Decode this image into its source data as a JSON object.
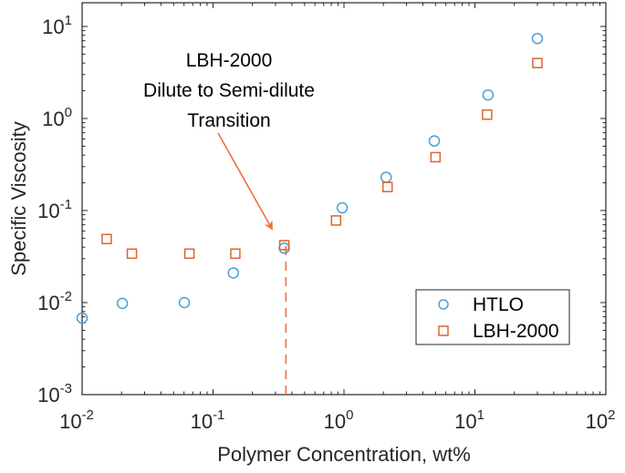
{
  "chart_data": {
    "type": "scatter",
    "title": "",
    "xlabel": "Polymer Concentration, wt%",
    "ylabel": "Specific Viscosity",
    "xscale": "log",
    "yscale": "log",
    "xlim": [
      0.01,
      100
    ],
    "ylim": [
      0.001,
      18
    ],
    "x_ticks": [
      {
        "base": "10",
        "exp": "-2",
        "value": 0.01
      },
      {
        "base": "10",
        "exp": "-1",
        "value": 0.1
      },
      {
        "base": "10",
        "exp": "0",
        "value": 1
      },
      {
        "base": "10",
        "exp": "1",
        "value": 10
      },
      {
        "base": "10",
        "exp": "2",
        "value": 100
      }
    ],
    "y_ticks": [
      {
        "base": "10",
        "exp": "-3",
        "value": 0.001
      },
      {
        "base": "10",
        "exp": "-2",
        "value": 0.01
      },
      {
        "base": "10",
        "exp": "-1",
        "value": 0.1
      },
      {
        "base": "10",
        "exp": "0",
        "value": 1
      },
      {
        "base": "10",
        "exp": "1",
        "value": 10
      }
    ],
    "grid": false,
    "legend_position": "lower right",
    "series": [
      {
        "name": "HTLO",
        "marker": "circle",
        "color": "#4a9fd8",
        "x": [
          0.01,
          0.0203,
          0.0604,
          0.143,
          0.35,
          0.97,
          2.1,
          4.9,
          12.6,
          30
        ],
        "y": [
          0.0068,
          0.0098,
          0.01,
          0.021,
          0.039,
          0.107,
          0.23,
          0.57,
          1.8,
          7.4
        ]
      },
      {
        "name": "LBH-2000",
        "marker": "square",
        "color": "#e0622d",
        "x": [
          0.0154,
          0.024,
          0.066,
          0.148,
          0.35,
          0.87,
          2.15,
          5.0,
          12.4,
          30
        ],
        "y": [
          0.049,
          0.034,
          0.034,
          0.034,
          0.042,
          0.078,
          0.18,
          0.38,
          1.1,
          4.0
        ]
      }
    ],
    "annotations": [
      {
        "lines": [
          "LBH-2000",
          "Dilute to Semi-dilute",
          "Transition"
        ],
        "arrow_to": {
          "x": 0.33,
          "y": 0.045
        },
        "color": "#f07040"
      },
      {
        "type": "vertical-dashed-line",
        "x": 0.36,
        "from_y": 0.001,
        "to_y": 0.042,
        "color": "#f07040"
      }
    ]
  },
  "legend": {
    "items": [
      {
        "label": "HTLO"
      },
      {
        "label": "LBH-2000"
      }
    ]
  }
}
